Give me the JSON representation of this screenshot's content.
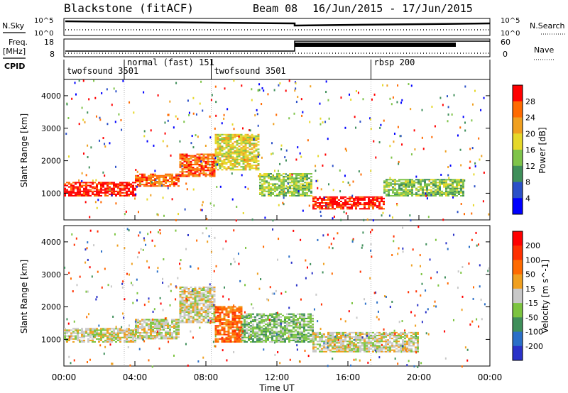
{
  "header": {
    "title": "Blackstone (fitACF)",
    "beam": "Beam 08",
    "date_range": "16/Jun/2015 - 17/Jun/2015"
  },
  "side_labels": {
    "nsky": "N.Sky",
    "nsearch": "N.Search",
    "freq": "Freq.",
    "freq_unit": "[MHz]",
    "nave": "Nave",
    "cpid": "CPID"
  },
  "noise_axis": {
    "left_ticks": [
      "10^5",
      "10^0"
    ],
    "right_ticks": [
      "10^5",
      "10^0"
    ]
  },
  "freq_axis": {
    "left_ticks": [
      "18",
      "8"
    ],
    "right_ticks": [
      "60",
      "0"
    ]
  },
  "cpid_modes": [
    {
      "label": "twofsound 3501",
      "start_h": 0,
      "end_h": 3.4
    },
    {
      "label": "normal (fast) 151",
      "start_h": 3.4,
      "end_h": 8.3
    },
    {
      "label": "twofsound 3501",
      "start_h": 8.3,
      "end_h": 17.3
    },
    {
      "label": "rbsp 200",
      "start_h": 17.3,
      "end_h": 24
    }
  ],
  "chart_data": [
    {
      "type": "heatmap",
      "name": "power_panel",
      "ylabel": "Slant Range [km]",
      "x_range_h": [
        0,
        24
      ],
      "ylim": [
        180,
        4500
      ],
      "yticks": [
        "1000",
        "2000",
        "3000",
        "4000"
      ],
      "colorbar": {
        "label": "Power [dB]",
        "ticks": [
          "4",
          "8",
          "12",
          "16",
          "20",
          "24",
          "28"
        ],
        "colors": [
          "#0000ff",
          "#2b50c8",
          "#3f8f5a",
          "#7fc44a",
          "#e6d82a",
          "#f0a020",
          "#ff6a00",
          "#ff0000"
        ]
      },
      "bands": [
        {
          "h": [
            0,
            4
          ],
          "range": [
            900,
            1350
          ],
          "level": 7
        },
        {
          "h": [
            4,
            6.5
          ],
          "range": [
            1200,
            1600
          ],
          "level": 6
        },
        {
          "h": [
            6.5,
            8.5
          ],
          "range": [
            1500,
            2200
          ],
          "level": 6
        },
        {
          "h": [
            8.5,
            11
          ],
          "range": [
            1700,
            2800
          ],
          "level": 4
        },
        {
          "h": [
            11,
            14
          ],
          "range": [
            900,
            1600
          ],
          "level": 3
        },
        {
          "h": [
            14,
            18
          ],
          "range": [
            500,
            900
          ],
          "level": 7
        },
        {
          "h": [
            18,
            22.5
          ],
          "range": [
            900,
            1400
          ],
          "level": 3
        }
      ]
    },
    {
      "type": "heatmap",
      "name": "velocity_panel",
      "ylabel": "Slant Range [km]",
      "x_range_h": [
        0,
        24
      ],
      "ylim": [
        180,
        4500
      ],
      "yticks": [
        "1000",
        "2000",
        "3000",
        "4000"
      ],
      "colorbar": {
        "label": "Velocity [m s^-1]",
        "ticks": [
          "200",
          "100",
          "50",
          "15",
          "-15",
          "-50",
          "-100",
          "-200"
        ],
        "colors": [
          "#2a32c8",
          "#2b6fc8",
          "#3f8f5a",
          "#7cc440",
          "#c8c8c8",
          "#f0a020",
          "#ff6a00",
          "#ff3000",
          "#ff0000"
        ]
      },
      "bands": [
        {
          "h": [
            0,
            4
          ],
          "range": [
            900,
            1350
          ],
          "level": 4
        },
        {
          "h": [
            4,
            6.5
          ],
          "range": [
            1000,
            1600
          ],
          "level": 4
        },
        {
          "h": [
            6.5,
            8.5
          ],
          "range": [
            1500,
            2600
          ],
          "level": 4
        },
        {
          "h": [
            8.5,
            10
          ],
          "range": [
            900,
            2000
          ],
          "level": 6
        },
        {
          "h": [
            10,
            14
          ],
          "range": [
            900,
            1800
          ],
          "level": 3
        },
        {
          "h": [
            14,
            20
          ],
          "range": [
            600,
            1200
          ],
          "level": 4
        }
      ]
    }
  ],
  "x_axis": {
    "label": "Time UT",
    "ticks": [
      "00:00",
      "04:00",
      "08:00",
      "12:00",
      "16:00",
      "20:00",
      "00:00"
    ]
  },
  "palette": {
    "frame": "#000000",
    "background": "#ffffff"
  }
}
